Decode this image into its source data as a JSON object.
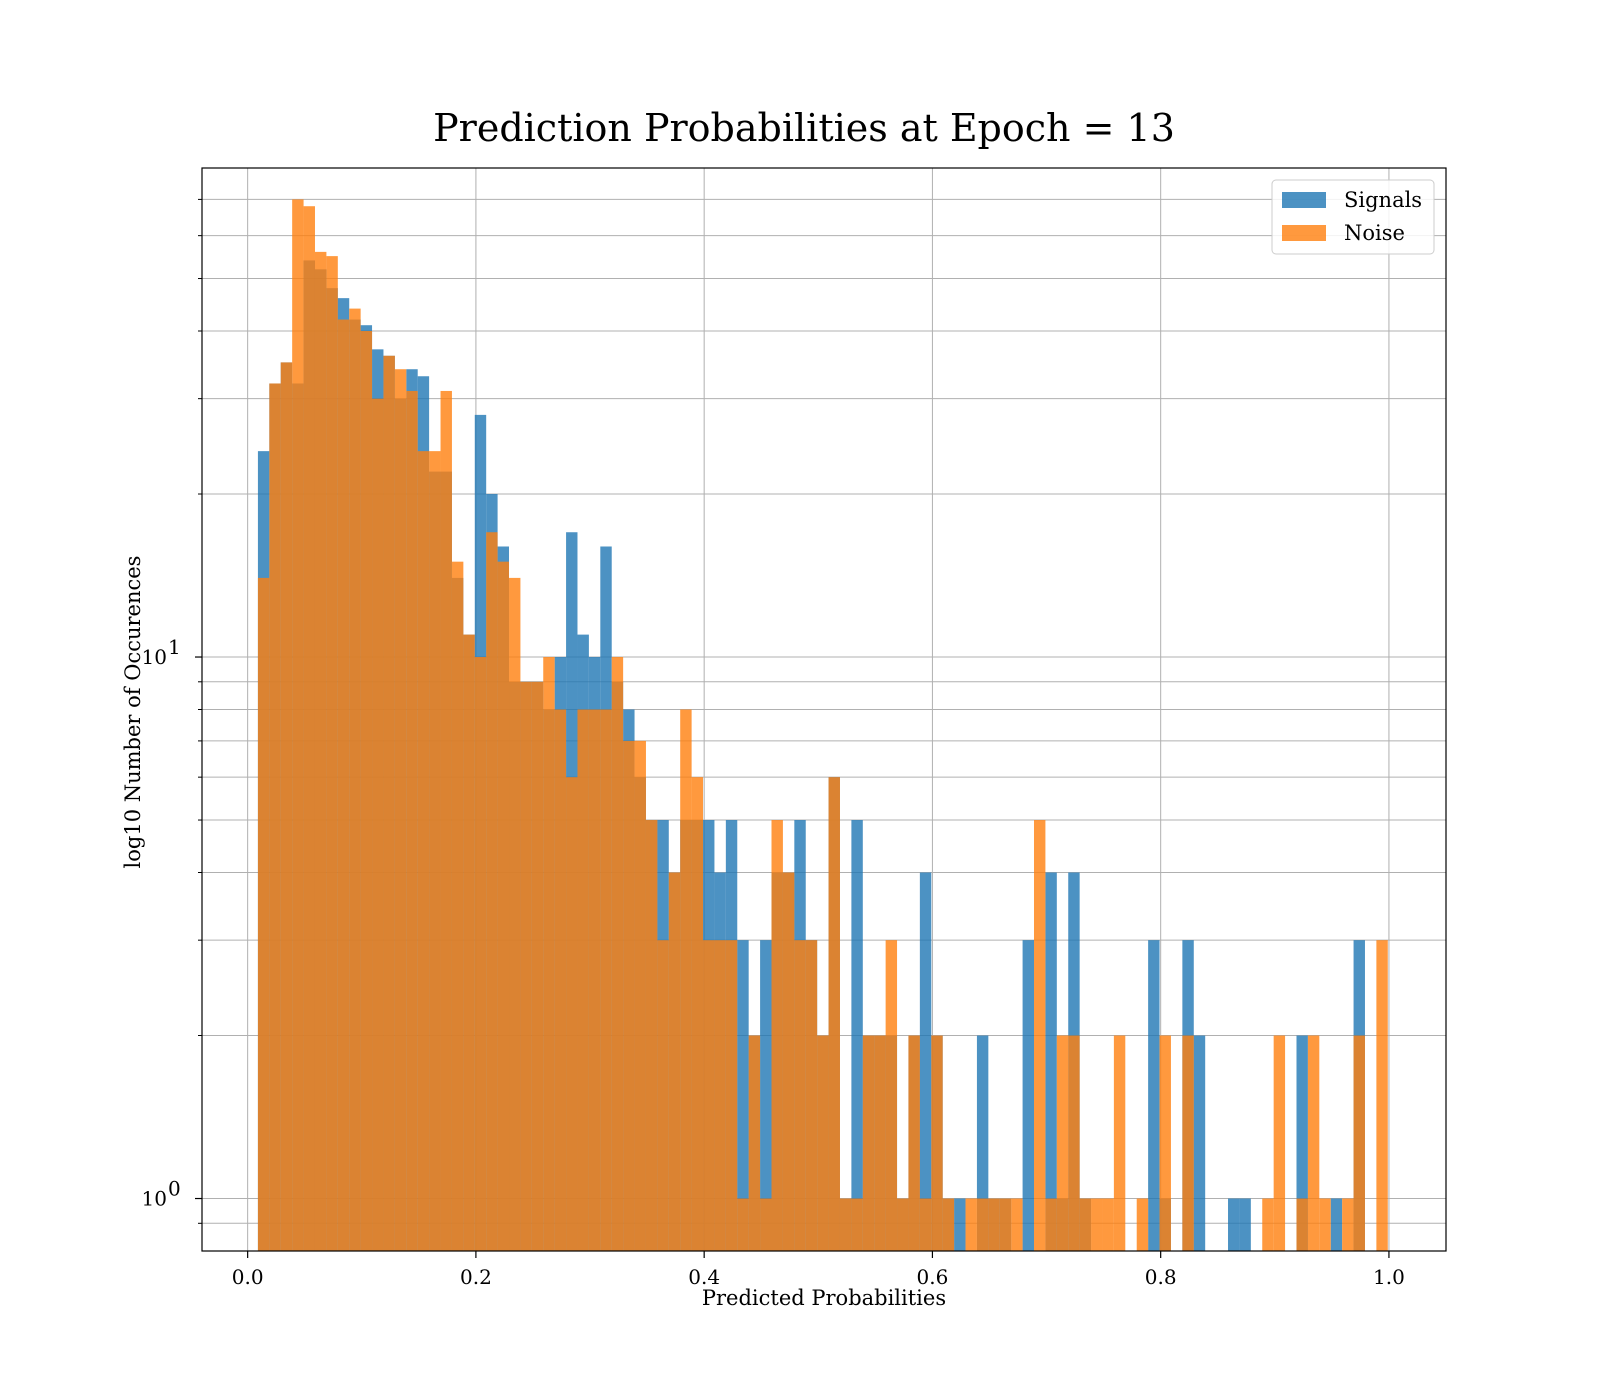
{
  "chart_data": {
    "type": "bar",
    "subtype": "histogram",
    "title": "Prediction Probabilities at Epoch = 13",
    "xlabel": "Predicted Probabilities",
    "ylabel": "log10 Number of Occurences",
    "xlim": [
      -0.04,
      1.05
    ],
    "ylim": [
      0.8,
      80
    ],
    "yscale": "log",
    "grid": true,
    "legend_position": "top-right",
    "x_ticks": [
      0.0,
      0.2,
      0.4,
      0.6,
      0.8,
      1.0
    ],
    "x_tick_labels": [
      "0.0",
      "0.2",
      "0.4",
      "0.6",
      "0.8",
      "1.0"
    ],
    "y_major_ticks": [
      {
        "value": 1,
        "base": "10",
        "exponent": "0"
      },
      {
        "value": 10,
        "base": "10",
        "exponent": "1"
      }
    ],
    "y_minor_ticks": [
      0.9,
      2,
      3,
      4,
      5,
      6,
      7,
      8,
      9,
      20,
      30,
      40,
      50,
      60,
      70
    ],
    "bin_width": 0.01,
    "series": [
      {
        "name": "Signals",
        "color": "#1f77b4",
        "alpha": 0.8,
        "bins": [
          {
            "x": 0.014,
            "value": 24
          },
          {
            "x": 0.024,
            "value": 32
          },
          {
            "x": 0.034,
            "value": 35
          },
          {
            "x": 0.044,
            "value": 32
          },
          {
            "x": 0.054,
            "value": 54
          },
          {
            "x": 0.064,
            "value": 52
          },
          {
            "x": 0.074,
            "value": 48
          },
          {
            "x": 0.084,
            "value": 46
          },
          {
            "x": 0.094,
            "value": 42
          },
          {
            "x": 0.104,
            "value": 41
          },
          {
            "x": 0.114,
            "value": 37
          },
          {
            "x": 0.124,
            "value": 36
          },
          {
            "x": 0.134,
            "value": 30
          },
          {
            "x": 0.144,
            "value": 34
          },
          {
            "x": 0.154,
            "value": 33
          },
          {
            "x": 0.164,
            "value": 22
          },
          {
            "x": 0.174,
            "value": 22
          },
          {
            "x": 0.184,
            "value": 14
          },
          {
            "x": 0.194,
            "value": 11
          },
          {
            "x": 0.204,
            "value": 28
          },
          {
            "x": 0.214,
            "value": 20
          },
          {
            "x": 0.224,
            "value": 16
          },
          {
            "x": 0.234,
            "value": 9
          },
          {
            "x": 0.244,
            "value": 9
          },
          {
            "x": 0.254,
            "value": 9
          },
          {
            "x": 0.264,
            "value": 8
          },
          {
            "x": 0.274,
            "value": 10
          },
          {
            "x": 0.284,
            "value": 17
          },
          {
            "x": 0.294,
            "value": 11
          },
          {
            "x": 0.304,
            "value": 10
          },
          {
            "x": 0.314,
            "value": 16
          },
          {
            "x": 0.324,
            "value": 9
          },
          {
            "x": 0.334,
            "value": 8
          },
          {
            "x": 0.344,
            "value": 6
          },
          {
            "x": 0.354,
            "value": 5
          },
          {
            "x": 0.364,
            "value": 5
          },
          {
            "x": 0.374,
            "value": 4
          },
          {
            "x": 0.384,
            "value": 5
          },
          {
            "x": 0.394,
            "value": 5
          },
          {
            "x": 0.404,
            "value": 5
          },
          {
            "x": 0.414,
            "value": 4
          },
          {
            "x": 0.424,
            "value": 5
          },
          {
            "x": 0.434,
            "value": 3
          },
          {
            "x": 0.444,
            "value": 2
          },
          {
            "x": 0.454,
            "value": 3
          },
          {
            "x": 0.464,
            "value": 4
          },
          {
            "x": 0.474,
            "value": 4
          },
          {
            "x": 0.484,
            "value": 5
          },
          {
            "x": 0.494,
            "value": 3
          },
          {
            "x": 0.504,
            "value": 2
          },
          {
            "x": 0.514,
            "value": 6
          },
          {
            "x": 0.524,
            "value": 1
          },
          {
            "x": 0.534,
            "value": 5
          },
          {
            "x": 0.544,
            "value": 2
          },
          {
            "x": 0.554,
            "value": 2
          },
          {
            "x": 0.564,
            "value": 2
          },
          {
            "x": 0.574,
            "value": 1
          },
          {
            "x": 0.584,
            "value": 2
          },
          {
            "x": 0.594,
            "value": 4
          },
          {
            "x": 0.604,
            "value": 2
          },
          {
            "x": 0.614,
            "value": 1
          },
          {
            "x": 0.624,
            "value": 1
          },
          {
            "x": 0.644,
            "value": 2
          },
          {
            "x": 0.654,
            "value": 1
          },
          {
            "x": 0.664,
            "value": 1
          },
          {
            "x": 0.684,
            "value": 3
          },
          {
            "x": 0.704,
            "value": 4
          },
          {
            "x": 0.714,
            "value": 1
          },
          {
            "x": 0.724,
            "value": 4
          },
          {
            "x": 0.734,
            "value": 1
          },
          {
            "x": 0.794,
            "value": 3
          },
          {
            "x": 0.804,
            "value": 1
          },
          {
            "x": 0.824,
            "value": 3
          },
          {
            "x": 0.834,
            "value": 2
          },
          {
            "x": 0.864,
            "value": 1
          },
          {
            "x": 0.874,
            "value": 1
          },
          {
            "x": 0.924,
            "value": 2
          },
          {
            "x": 0.954,
            "value": 1
          },
          {
            "x": 0.974,
            "value": 3
          }
        ]
      },
      {
        "name": "Noise",
        "color": "#ff7f0e",
        "alpha": 0.8,
        "bins": [
          {
            "x": 0.014,
            "value": 14
          },
          {
            "x": 0.024,
            "value": 32
          },
          {
            "x": 0.034,
            "value": 35
          },
          {
            "x": 0.044,
            "value": 70
          },
          {
            "x": 0.054,
            "value": 68
          },
          {
            "x": 0.064,
            "value": 56
          },
          {
            "x": 0.074,
            "value": 55
          },
          {
            "x": 0.084,
            "value": 42
          },
          {
            "x": 0.094,
            "value": 44
          },
          {
            "x": 0.104,
            "value": 40
          },
          {
            "x": 0.114,
            "value": 30
          },
          {
            "x": 0.124,
            "value": 36
          },
          {
            "x": 0.134,
            "value": 34
          },
          {
            "x": 0.144,
            "value": 31
          },
          {
            "x": 0.154,
            "value": 24
          },
          {
            "x": 0.164,
            "value": 24
          },
          {
            "x": 0.174,
            "value": 31
          },
          {
            "x": 0.184,
            "value": 15
          },
          {
            "x": 0.194,
            "value": 11
          },
          {
            "x": 0.204,
            "value": 10
          },
          {
            "x": 0.214,
            "value": 17
          },
          {
            "x": 0.224,
            "value": 15
          },
          {
            "x": 0.234,
            "value": 14
          },
          {
            "x": 0.244,
            "value": 9
          },
          {
            "x": 0.254,
            "value": 9
          },
          {
            "x": 0.264,
            "value": 10
          },
          {
            "x": 0.274,
            "value": 8
          },
          {
            "x": 0.284,
            "value": 6
          },
          {
            "x": 0.294,
            "value": 8
          },
          {
            "x": 0.304,
            "value": 8
          },
          {
            "x": 0.314,
            "value": 8
          },
          {
            "x": 0.324,
            "value": 10
          },
          {
            "x": 0.334,
            "value": 7
          },
          {
            "x": 0.344,
            "value": 7
          },
          {
            "x": 0.354,
            "value": 5
          },
          {
            "x": 0.364,
            "value": 3
          },
          {
            "x": 0.374,
            "value": 4
          },
          {
            "x": 0.384,
            "value": 8
          },
          {
            "x": 0.394,
            "value": 6
          },
          {
            "x": 0.404,
            "value": 3
          },
          {
            "x": 0.414,
            "value": 3
          },
          {
            "x": 0.424,
            "value": 3
          },
          {
            "x": 0.434,
            "value": 1
          },
          {
            "x": 0.444,
            "value": 2
          },
          {
            "x": 0.454,
            "value": 1
          },
          {
            "x": 0.464,
            "value": 5
          },
          {
            "x": 0.474,
            "value": 4
          },
          {
            "x": 0.484,
            "value": 3
          },
          {
            "x": 0.494,
            "value": 3
          },
          {
            "x": 0.504,
            "value": 2
          },
          {
            "x": 0.514,
            "value": 6
          },
          {
            "x": 0.524,
            "value": 1
          },
          {
            "x": 0.534,
            "value": 1
          },
          {
            "x": 0.544,
            "value": 2
          },
          {
            "x": 0.554,
            "value": 2
          },
          {
            "x": 0.564,
            "value": 3
          },
          {
            "x": 0.574,
            "value": 1
          },
          {
            "x": 0.584,
            "value": 2
          },
          {
            "x": 0.594,
            "value": 1
          },
          {
            "x": 0.604,
            "value": 2
          },
          {
            "x": 0.614,
            "value": 1
          },
          {
            "x": 0.634,
            "value": 1
          },
          {
            "x": 0.644,
            "value": 1
          },
          {
            "x": 0.654,
            "value": 1
          },
          {
            "x": 0.664,
            "value": 1
          },
          {
            "x": 0.674,
            "value": 1
          },
          {
            "x": 0.694,
            "value": 5
          },
          {
            "x": 0.704,
            "value": 1
          },
          {
            "x": 0.714,
            "value": 2
          },
          {
            "x": 0.724,
            "value": 2
          },
          {
            "x": 0.734,
            "value": 1
          },
          {
            "x": 0.744,
            "value": 1
          },
          {
            "x": 0.754,
            "value": 1
          },
          {
            "x": 0.764,
            "value": 2
          },
          {
            "x": 0.784,
            "value": 1
          },
          {
            "x": 0.804,
            "value": 2
          },
          {
            "x": 0.824,
            "value": 2
          },
          {
            "x": 0.894,
            "value": 1
          },
          {
            "x": 0.904,
            "value": 2
          },
          {
            "x": 0.924,
            "value": 1
          },
          {
            "x": 0.934,
            "value": 2
          },
          {
            "x": 0.944,
            "value": 1
          },
          {
            "x": 0.964,
            "value": 1
          },
          {
            "x": 0.974,
            "value": 2
          },
          {
            "x": 0.994,
            "value": 3
          }
        ]
      }
    ]
  }
}
